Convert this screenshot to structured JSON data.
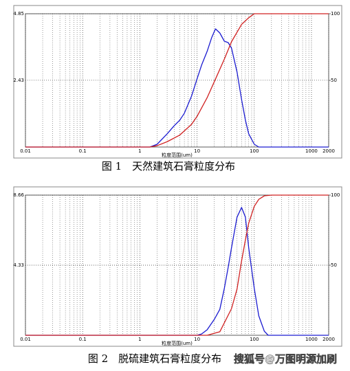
{
  "chart_data": [
    {
      "type": "line",
      "caption": "图 1　天然建筑石膏粒度分布",
      "xlabel": "粒度范围(um)",
      "log_x": true,
      "xlim": [
        0.01,
        2000
      ],
      "xticks": [
        0.01,
        0.1,
        1,
        10,
        100,
        1000,
        2000
      ],
      "ylim": [
        0,
        4.85
      ],
      "yticks": [
        2.43,
        4.85
      ],
      "y2lim": [
        0,
        100
      ],
      "y2ticks": [
        50,
        100
      ],
      "grid": true,
      "series": [
        {
          "color": "#1a1ad0",
          "x": [
            0.01,
            1.5,
            2,
            3,
            4,
            5,
            6,
            8,
            10,
            12,
            15,
            18,
            21,
            25,
            30,
            35,
            40,
            50,
            60,
            70,
            80,
            100,
            120,
            2000
          ],
          "values": [
            0,
            0,
            0.1,
            0.48,
            0.78,
            0.98,
            1.23,
            1.85,
            2.48,
            2.98,
            3.48,
            3.98,
            4.3,
            4.15,
            3.85,
            3.8,
            3.6,
            2.73,
            1.73,
            0.98,
            0.48,
            0.1,
            0,
            0
          ]
        },
        {
          "color": "#d02020",
          "axis": "y2",
          "x": [
            0.01,
            1.5,
            2,
            3,
            5,
            8,
            10,
            15,
            21,
            30,
            40,
            60,
            80,
            100,
            2000
          ],
          "values": [
            0,
            0,
            1,
            4,
            9,
            17,
            23,
            37,
            51,
            66,
            79,
            92,
            97,
            100,
            100
          ]
        }
      ]
    },
    {
      "type": "line",
      "caption": "图 2　脱硫建筑石膏粒度分布",
      "xlabel": "粒度范围(um)",
      "log_x": true,
      "xlim": [
        0.01,
        2000
      ],
      "xticks": [
        0.01,
        0.1,
        1,
        10,
        100,
        1000,
        2000
      ],
      "ylim": [
        0,
        8.66
      ],
      "yticks": [
        4.33,
        8.66
      ],
      "y2lim": [
        0,
        100
      ],
      "y2ticks": [
        50,
        100
      ],
      "grid": true,
      "series": [
        {
          "color": "#1a1ad0",
          "x": [
            0.01,
            10,
            12,
            15,
            20,
            25,
            30,
            35,
            40,
            50,
            60,
            70,
            80,
            100,
            120,
            150,
            175,
            2000
          ],
          "values": [
            0,
            0,
            0.08,
            0.34,
            0.98,
            1.6,
            2.9,
            4.2,
            5.4,
            7.3,
            7.9,
            7.3,
            5.4,
            2.9,
            1.2,
            0.25,
            0,
            0
          ]
        },
        {
          "color": "#d02020",
          "axis": "y2",
          "x": [
            0.01,
            15,
            25,
            40,
            50,
            60,
            70,
            80,
            100,
            120,
            150,
            200,
            2000
          ],
          "values": [
            0,
            0,
            2.5,
            19,
            33,
            53,
            68,
            80,
            92,
            97,
            99.5,
            100,
            100
          ]
        }
      ]
    }
  ],
  "watermark": "搜狐号@万图明源加刷"
}
